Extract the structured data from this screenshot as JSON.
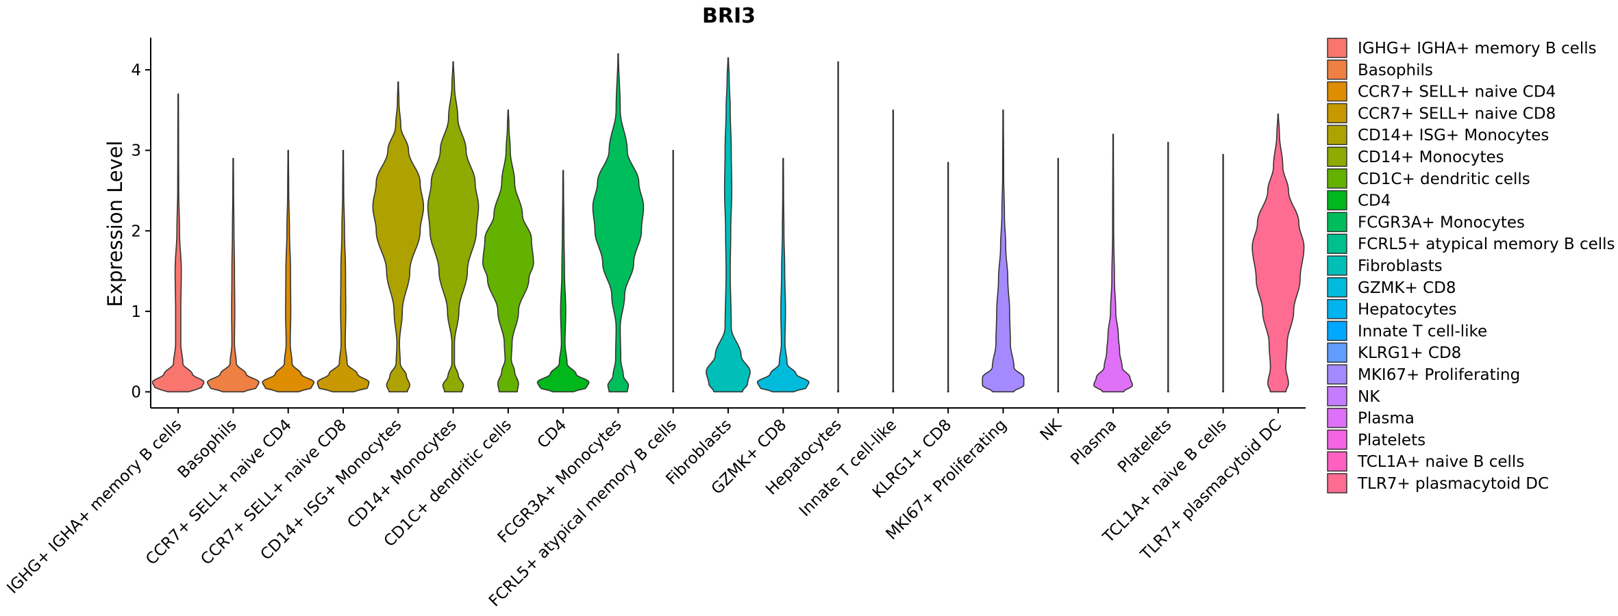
{
  "chart_data": {
    "type": "violin",
    "title": "BRI3",
    "xlabel": "",
    "ylabel": "Expression Level",
    "ylim": [
      -0.2,
      4.4
    ],
    "yticks": [
      0,
      1,
      2,
      3,
      4
    ],
    "legend_position": "right",
    "categories": [
      "IGHG+ IGHA+ memory B cells",
      "Basophils",
      "CCR7+ SELL+ naive CD4",
      "CCR7+ SELL+ naive CD8",
      "CD14+ ISG+ Monocytes",
      "CD14+ Monocytes",
      "CD1C+ dendritic cells",
      "CD4",
      "FCGR3A+ Monocytes",
      "FCRL5+ atypical memory B cells",
      "Fibroblasts",
      "GZMK+ CD8",
      "Hepatocytes",
      "Innate T cell-like",
      "KLRG1+ CD8",
      "MKI67+ Proliferating",
      "NK",
      "Plasma",
      "Platelets",
      "TCL1A+ naive B cells",
      "TLR7+ plasmacytoid DC"
    ],
    "legend_labels": [
      " IGHG+ IGHA+ memory B cells",
      "Basophils",
      "CCR7+ SELL+ naive CD4",
      "CCR7+ SELL+ naive CD8",
      "CD14+ ISG+ Monocytes",
      "CD14+ Monocytes",
      "CD1C+ dendritic cells",
      "CD4",
      "FCGR3A+ Monocytes",
      "FCRL5+ atypical memory B cells",
      "Fibroblasts",
      "GZMK+ CD8",
      "Hepatocytes",
      "Innate T cell-like",
      "KLRG1+ CD8",
      "MKI67+ Proliferating",
      "NK",
      "Plasma",
      "Platelets",
      "TCL1A+ naive B cells",
      "TLR7+ plasmacytoid DC"
    ],
    "colors": [
      "#F8766D",
      "#EE8043",
      "#DE8C00",
      "#C79800",
      "#AEA200",
      "#8FAA00",
      "#64B200",
      "#00B81B",
      "#00BD5C",
      "#00C08D",
      "#00BFB8",
      "#00BBDB",
      "#00B4F0",
      "#00A8FF",
      "#619CFF",
      "#A58AFF",
      "#C77CFF",
      "#DF70F8",
      "#F564E3",
      "#FF61C3",
      "#FF6C91"
    ],
    "series": [
      {
        "name": "IGHG+ IGHA+ memory B cells",
        "max": 3.7,
        "profile": [
          [
            0,
            0.4
          ],
          [
            0.05,
            0.9
          ],
          [
            0.12,
            1.0
          ],
          [
            0.22,
            0.55
          ],
          [
            0.35,
            0.18
          ],
          [
            0.6,
            0.1
          ],
          [
            1.0,
            0.1
          ],
          [
            1.5,
            0.12
          ],
          [
            2.0,
            0.05
          ],
          [
            2.5,
            0.02
          ],
          [
            3.0,
            0.015
          ],
          [
            3.7,
            0.01
          ]
        ]
      },
      {
        "name": "Basophils",
        "max": 2.9,
        "profile": [
          [
            0,
            0.4
          ],
          [
            0.05,
            0.9
          ],
          [
            0.12,
            1.0
          ],
          [
            0.22,
            0.5
          ],
          [
            0.35,
            0.12
          ],
          [
            0.6,
            0.05
          ],
          [
            1.0,
            0.06
          ],
          [
            1.5,
            0.05
          ],
          [
            2.0,
            0.03
          ],
          [
            2.5,
            0.015
          ],
          [
            2.9,
            0.01
          ]
        ]
      },
      {
        "name": "CCR7+ SELL+ naive CD4",
        "max": 3.0,
        "profile": [
          [
            0,
            0.4
          ],
          [
            0.05,
            0.9
          ],
          [
            0.12,
            1.0
          ],
          [
            0.22,
            0.5
          ],
          [
            0.35,
            0.15
          ],
          [
            0.6,
            0.08
          ],
          [
            1.0,
            0.1
          ],
          [
            1.5,
            0.09
          ],
          [
            2.0,
            0.05
          ],
          [
            2.5,
            0.02
          ],
          [
            3.0,
            0.01
          ]
        ]
      },
      {
        "name": "CCR7+ SELL+ naive CD8",
        "max": 3.0,
        "profile": [
          [
            0,
            0.4
          ],
          [
            0.05,
            0.95
          ],
          [
            0.12,
            1.0
          ],
          [
            0.22,
            0.55
          ],
          [
            0.35,
            0.15
          ],
          [
            0.6,
            0.08
          ],
          [
            1.0,
            0.1
          ],
          [
            1.5,
            0.09
          ],
          [
            2.0,
            0.05
          ],
          [
            2.5,
            0.02
          ],
          [
            3.0,
            0.01
          ]
        ]
      },
      {
        "name": "CD14+ ISG+ Monocytes",
        "max": 3.85,
        "profile": [
          [
            0,
            0.35
          ],
          [
            0.08,
            0.45
          ],
          [
            0.2,
            0.32
          ],
          [
            0.35,
            0.08
          ],
          [
            0.6,
            0.05
          ],
          [
            1.0,
            0.16
          ],
          [
            1.5,
            0.45
          ],
          [
            2.0,
            0.85
          ],
          [
            2.3,
            0.98
          ],
          [
            2.6,
            0.85
          ],
          [
            3.0,
            0.4
          ],
          [
            3.3,
            0.1
          ],
          [
            3.6,
            0.03
          ],
          [
            3.85,
            0.01
          ]
        ]
      },
      {
        "name": "CD14+ Monocytes",
        "max": 4.1,
        "profile": [
          [
            0,
            0.33
          ],
          [
            0.08,
            0.4
          ],
          [
            0.2,
            0.2
          ],
          [
            0.35,
            0.05
          ],
          [
            0.6,
            0.05
          ],
          [
            1.0,
            0.22
          ],
          [
            1.5,
            0.55
          ],
          [
            2.0,
            0.9
          ],
          [
            2.3,
            0.98
          ],
          [
            2.6,
            0.85
          ],
          [
            3.0,
            0.5
          ],
          [
            3.4,
            0.18
          ],
          [
            3.8,
            0.05
          ],
          [
            4.1,
            0.01
          ]
        ]
      },
      {
        "name": "CD1C+ dendritic cells",
        "max": 3.5,
        "profile": [
          [
            0,
            0.35
          ],
          [
            0.1,
            0.4
          ],
          [
            0.25,
            0.25
          ],
          [
            0.4,
            0.12
          ],
          [
            0.6,
            0.15
          ],
          [
            1.0,
            0.4
          ],
          [
            1.4,
            0.8
          ],
          [
            1.6,
            0.98
          ],
          [
            1.9,
            0.9
          ],
          [
            2.2,
            0.55
          ],
          [
            2.6,
            0.25
          ],
          [
            3.0,
            0.08
          ],
          [
            3.3,
            0.03
          ],
          [
            3.5,
            0.01
          ]
        ]
      },
      {
        "name": "CD4",
        "max": 2.75,
        "profile": [
          [
            0,
            0.4
          ],
          [
            0.05,
            0.9
          ],
          [
            0.12,
            1.0
          ],
          [
            0.22,
            0.5
          ],
          [
            0.35,
            0.15
          ],
          [
            0.6,
            0.07
          ],
          [
            1.0,
            0.1
          ],
          [
            1.5,
            0.05
          ],
          [
            2.0,
            0.03
          ],
          [
            2.5,
            0.015
          ],
          [
            2.75,
            0.01
          ]
        ]
      },
      {
        "name": "FCGR3A+ Monocytes",
        "max": 4.2,
        "profile": [
          [
            0,
            0.35
          ],
          [
            0.08,
            0.4
          ],
          [
            0.2,
            0.2
          ],
          [
            0.4,
            0.1
          ],
          [
            0.8,
            0.08
          ],
          [
            1.2,
            0.25
          ],
          [
            1.6,
            0.6
          ],
          [
            2.0,
            0.9
          ],
          [
            2.3,
            0.98
          ],
          [
            2.6,
            0.8
          ],
          [
            3.0,
            0.35
          ],
          [
            3.5,
            0.08
          ],
          [
            4.2,
            0.01
          ]
        ]
      },
      {
        "name": "FCRL5+ atypical memory B cells",
        "max": 3.0,
        "profile": [
          [
            0,
            0.02
          ],
          [
            0.01,
            0.02
          ],
          [
            0.02,
            0.01
          ],
          [
            3.0,
            0.01
          ]
        ]
      },
      {
        "name": "Fibroblasts",
        "max": 4.15,
        "profile": [
          [
            0,
            0.55
          ],
          [
            0.1,
            0.75
          ],
          [
            0.25,
            0.85
          ],
          [
            0.45,
            0.5
          ],
          [
            0.8,
            0.12
          ],
          [
            1.5,
            0.08
          ],
          [
            2.0,
            0.1
          ],
          [
            2.5,
            0.14
          ],
          [
            3.0,
            0.12
          ],
          [
            3.5,
            0.08
          ],
          [
            3.9,
            0.04
          ],
          [
            4.15,
            0.01
          ]
        ]
      },
      {
        "name": "GZMK+ CD8",
        "max": 2.9,
        "profile": [
          [
            0,
            0.4
          ],
          [
            0.05,
            0.9
          ],
          [
            0.12,
            1.0
          ],
          [
            0.22,
            0.5
          ],
          [
            0.35,
            0.15
          ],
          [
            0.6,
            0.07
          ],
          [
            1.0,
            0.09
          ],
          [
            1.5,
            0.06
          ],
          [
            2.0,
            0.03
          ],
          [
            2.5,
            0.015
          ],
          [
            2.9,
            0.01
          ]
        ]
      },
      {
        "name": "Hepatocytes",
        "max": 4.1,
        "profile": [
          [
            0,
            0.02
          ],
          [
            0.01,
            0.02
          ],
          [
            0.02,
            0.01
          ],
          [
            4.1,
            0.01
          ]
        ]
      },
      {
        "name": "Innate T cell-like",
        "max": 3.5,
        "profile": [
          [
            0,
            0.02
          ],
          [
            0.01,
            0.02
          ],
          [
            0.02,
            0.01
          ],
          [
            3.5,
            0.01
          ]
        ]
      },
      {
        "name": "KLRG1+ CD8",
        "max": 2.85,
        "profile": [
          [
            0,
            0.02
          ],
          [
            0.01,
            0.02
          ],
          [
            0.02,
            0.01
          ],
          [
            2.85,
            0.01
          ]
        ]
      },
      {
        "name": "MKI67+ Proliferating",
        "max": 3.5,
        "profile": [
          [
            0,
            0.4
          ],
          [
            0.08,
            0.8
          ],
          [
            0.18,
            0.8
          ],
          [
            0.3,
            0.42
          ],
          [
            0.6,
            0.28
          ],
          [
            1.0,
            0.25
          ],
          [
            1.4,
            0.18
          ],
          [
            1.8,
            0.1
          ],
          [
            2.2,
            0.05
          ],
          [
            2.7,
            0.02
          ],
          [
            3.5,
            0.01
          ]
        ]
      },
      {
        "name": "NK",
        "max": 2.9,
        "profile": [
          [
            0,
            0.02
          ],
          [
            0.01,
            0.02
          ],
          [
            0.02,
            0.01
          ],
          [
            2.9,
            0.01
          ]
        ]
      },
      {
        "name": "Plasma",
        "max": 3.2,
        "profile": [
          [
            0,
            0.4
          ],
          [
            0.08,
            0.75
          ],
          [
            0.18,
            0.65
          ],
          [
            0.3,
            0.35
          ],
          [
            0.5,
            0.25
          ],
          [
            0.7,
            0.2
          ],
          [
            1.0,
            0.1
          ],
          [
            1.4,
            0.05
          ],
          [
            2.0,
            0.02
          ],
          [
            3.2,
            0.01
          ]
        ]
      },
      {
        "name": "Platelets",
        "max": 3.1,
        "profile": [
          [
            0,
            0.02
          ],
          [
            0.01,
            0.02
          ],
          [
            0.02,
            0.01
          ],
          [
            3.1,
            0.01
          ]
        ]
      },
      {
        "name": "TCL1A+ naive B cells",
        "max": 2.95,
        "profile": [
          [
            0,
            0.02
          ],
          [
            0.01,
            0.02
          ],
          [
            0.02,
            0.01
          ],
          [
            2.95,
            0.01
          ]
        ]
      },
      {
        "name": "TLR7+ plasmacytoid DC",
        "max": 3.45,
        "profile": [
          [
            0,
            0.3
          ],
          [
            0.1,
            0.4
          ],
          [
            0.3,
            0.3
          ],
          [
            0.6,
            0.35
          ],
          [
            1.0,
            0.6
          ],
          [
            1.4,
            0.85
          ],
          [
            1.8,
            1.0
          ],
          [
            2.1,
            0.8
          ],
          [
            2.5,
            0.4
          ],
          [
            2.8,
            0.18
          ],
          [
            3.2,
            0.05
          ],
          [
            3.45,
            0.01
          ]
        ]
      }
    ]
  }
}
